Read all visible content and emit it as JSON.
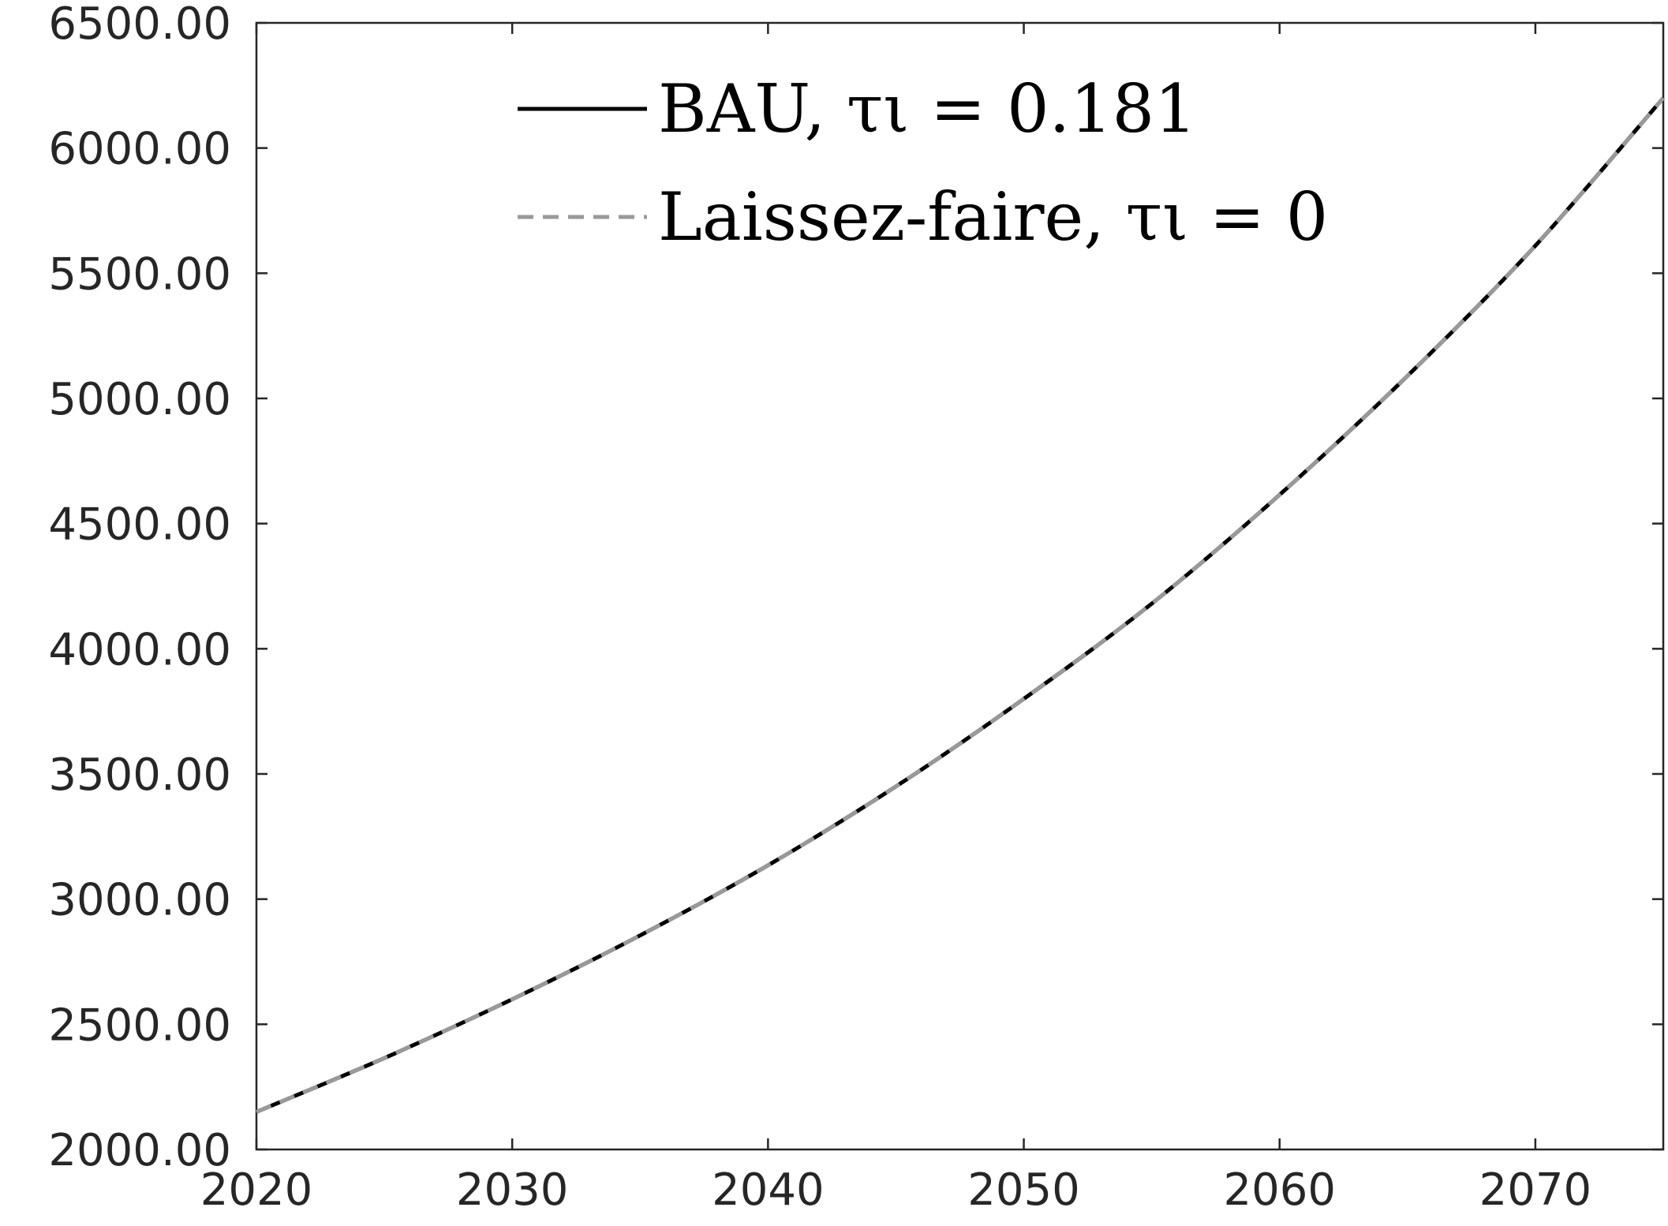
{
  "chart_data": {
    "type": "line",
    "title": "",
    "xlabel": "",
    "ylabel": "",
    "xlim": [
      2020,
      2075
    ],
    "ylim": [
      2000,
      6500
    ],
    "x_ticks": [
      2020,
      2030,
      2040,
      2050,
      2060,
      2070
    ],
    "x_tick_labels": [
      "2020",
      "2030",
      "2040",
      "2050",
      "2060",
      "2070"
    ],
    "y_ticks": [
      2000,
      2500,
      3000,
      3500,
      4000,
      4500,
      5000,
      5500,
      6000,
      6500
    ],
    "y_tick_labels": [
      "2000.00",
      "2500.00",
      "3000.00",
      "3500.00",
      "4000.00",
      "4500.00",
      "5000.00",
      "5500.00",
      "6000.00",
      "6500.00"
    ],
    "grid": false,
    "legend_position": "top-right",
    "x": [
      2020,
      2025,
      2030,
      2035,
      2040,
      2045,
      2050,
      2055,
      2060,
      2065,
      2070,
      2075
    ],
    "series": [
      {
        "name": "BAU, τι = 0.181",
        "color": "#000000",
        "style": "solid",
        "values": [
          2150,
          2365,
          2600,
          2855,
          3135,
          3450,
          3800,
          4180,
          4615,
          5090,
          5610,
          6200
        ]
      },
      {
        "name": "Laissez-faire, τι = 0",
        "color": "#999999",
        "style": "dashed",
        "values": [
          2150,
          2365,
          2600,
          2855,
          3135,
          3450,
          3800,
          4180,
          4615,
          5090,
          5610,
          6200
        ]
      }
    ]
  }
}
